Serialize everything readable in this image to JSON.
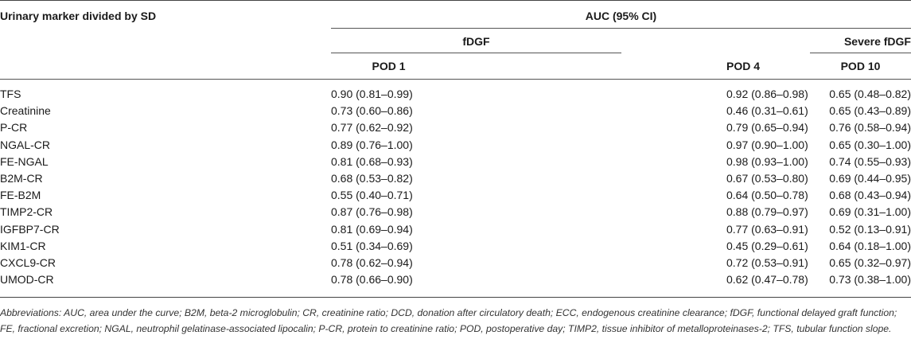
{
  "table": {
    "row_header": "Urinary marker divided by SD",
    "group_header": "AUC (95% CI)",
    "sub_headers": {
      "fdgf": "fDGF",
      "severe": "Severe fDGF"
    },
    "columns": [
      "POD 1",
      "POD 4",
      "POD 10"
    ],
    "rows": [
      {
        "marker": "TFS",
        "values": [
          "0.90 (0.81–0.99)",
          "0.92 (0.86–0.98)",
          "0.65 (0.48–0.82)"
        ]
      },
      {
        "marker": "Creatinine",
        "values": [
          "0.73 (0.60–0.86)",
          "0.46 (0.31–0.61)",
          "0.65 (0.43–0.89)"
        ]
      },
      {
        "marker": "P-CR",
        "values": [
          "0.77 (0.62–0.92)",
          "0.79 (0.65–0.94)",
          "0.76 (0.58–0.94)"
        ]
      },
      {
        "marker": "NGAL-CR",
        "values": [
          "0.89 (0.76–1.00)",
          "0.97 (0.90–1.00)",
          "0.65 (0.30–1.00)"
        ]
      },
      {
        "marker": "FE-NGAL",
        "values": [
          "0.81 (0.68–0.93)",
          "0.98 (0.93–1.00)",
          "0.74 (0.55–0.93)"
        ]
      },
      {
        "marker": "B2M-CR",
        "values": [
          "0.68 (0.53–0.82)",
          "0.67 (0.53–0.80)",
          "0.69 (0.44–0.95)"
        ]
      },
      {
        "marker": "FE-B2M",
        "values": [
          "0.55 (0.40–0.71)",
          "0.64 (0.50–0.78)",
          "0.68 (0.43–0.94)"
        ]
      },
      {
        "marker": "TIMP2-CR",
        "values": [
          "0.87 (0.76–0.98)",
          "0.88 (0.79–0.97)",
          "0.69 (0.31–1.00)"
        ]
      },
      {
        "marker": "IGFBP7-CR",
        "values": [
          "0.81 (0.69–0.94)",
          "0.77 (0.63–0.91)",
          "0.52 (0.13–0.91)"
        ]
      },
      {
        "marker": "KIM1-CR",
        "values": [
          "0.51 (0.34–0.69)",
          "0.45 (0.29–0.61)",
          "0.64 (0.18–1.00)"
        ]
      },
      {
        "marker": "CXCL9-CR",
        "values": [
          "0.78 (0.62–0.94)",
          "0.72 (0.53–0.91)",
          "0.65 (0.32–0.97)"
        ]
      },
      {
        "marker": "UMOD-CR",
        "values": [
          "0.78 (0.66–0.90)",
          "0.62 (0.47–0.78)",
          "0.73 (0.38–1.00)"
        ]
      }
    ]
  },
  "footnote": "Abbreviations: AUC, area under the curve; B2M, beta-2 microglobulin; CR, creatinine ratio; DCD, donation after circulatory death; ECC, endogenous creatinine clearance; fDGF, functional delayed graft function; FE, fractional excretion; NGAL, neutrophil gelatinase-associated lipocalin; P-CR, protein to creatinine ratio; POD, postoperative day; TIMP2, tissue inhibitor of metalloproteinases-2; TFS, tubular function slope."
}
